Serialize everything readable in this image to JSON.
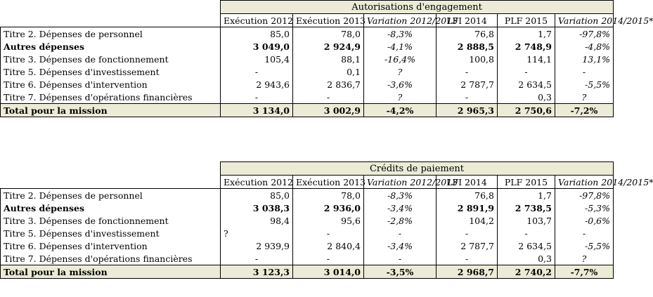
{
  "tables": [
    {
      "section_title": "Autorisations d'engagement",
      "headers": [
        "Exécution 2012",
        "Exécution 2013",
        "Variation 2012/2013",
        "LFI 2014",
        "PLF 2015",
        "Variation 2014/2015*"
      ],
      "rows": [
        {
          "label": "Titre 2. Dépenses de personnel",
          "values": [
            "85,0",
            "78,0",
            "-8,3%",
            "76,8",
            "1,7",
            "-97,8%"
          ]
        },
        {
          "label": "Autres dépenses",
          "values": [
            "3 049,0",
            "2 924,9",
            "-4,1%",
            "2 888,5",
            "2 748,9",
            "-4,8%"
          ]
        },
        {
          "label": "Titre 3. Dépenses de fonctionnement",
          "values": [
            "105,4",
            "88,1",
            "-16,4%",
            "100,8",
            "114,1",
            "13,1%"
          ]
        },
        {
          "label": "Titre 5. Dépenses d'investissement",
          "values": [
            "-",
            "0,1",
            "?",
            "-",
            "-",
            "-"
          ]
        },
        {
          "label": "Titre 6. Dépenses d'intervention",
          "values": [
            "2 943,6",
            "2 836,7",
            "-3,6%",
            "2 787,7",
            "2 634,5",
            "-5,5%"
          ]
        },
        {
          "label": "Titre 7. Dépenses d'opérations financières",
          "values": [
            "-",
            "-",
            "?",
            "-",
            "0,3",
            "?"
          ]
        }
      ],
      "total": {
        "label": "Total pour la mission",
        "values": [
          "3 134,0",
          "3 002,9",
          "-4,2%",
          "2 965,3",
          "2 750,6",
          "-7,2%"
        ]
      }
    },
    {
      "section_title": "Crédits de paiement",
      "headers": [
        "Exécution 2012",
        "Exécution 2013",
        "Variation 2012/2013",
        "LFI 2014",
        "PLF 2015",
        "Variation 2014/2015*"
      ],
      "rows": [
        {
          "label": "Titre 2. Dépenses de personnel",
          "values": [
            "85,0",
            "78,0",
            "-8,3%",
            "76,8",
            "1,7",
            "-97,8%"
          ]
        },
        {
          "label": "Autres dépenses",
          "values": [
            "3 038,3",
            "2 936,0",
            "-3,4%",
            "2 891,9",
            "2 738,5",
            "-5,3%"
          ]
        },
        {
          "label": "Titre 3. Dépenses de fonctionnement",
          "values": [
            "98,4",
            "95,6",
            "-2,8%",
            "104,2",
            "103,7",
            "-0,6%"
          ]
        },
        {
          "label": "Titre 5. Dépenses d'investissement",
          "values": [
            "?",
            "-",
            "-",
            "-",
            "-",
            "-"
          ]
        },
        {
          "label": "Titre 6. Dépenses d'intervention",
          "values": [
            "2 939,9",
            "2 840,4",
            "-3,4%",
            "2 787,7",
            "2 634,5",
            "-5,5%"
          ]
        },
        {
          "label": "Titre 7. Dépenses d'opérations financières",
          "values": [
            "-",
            "-",
            "-",
            "-",
            "0,3",
            "?"
          ]
        }
      ],
      "total": {
        "label": "Total pour la mission",
        "values": [
          "3 123,3",
          "3 014,0",
          "-3,5%",
          "2 968,7",
          "2 740,2",
          "-7,7%"
        ]
      }
    }
  ]
}
